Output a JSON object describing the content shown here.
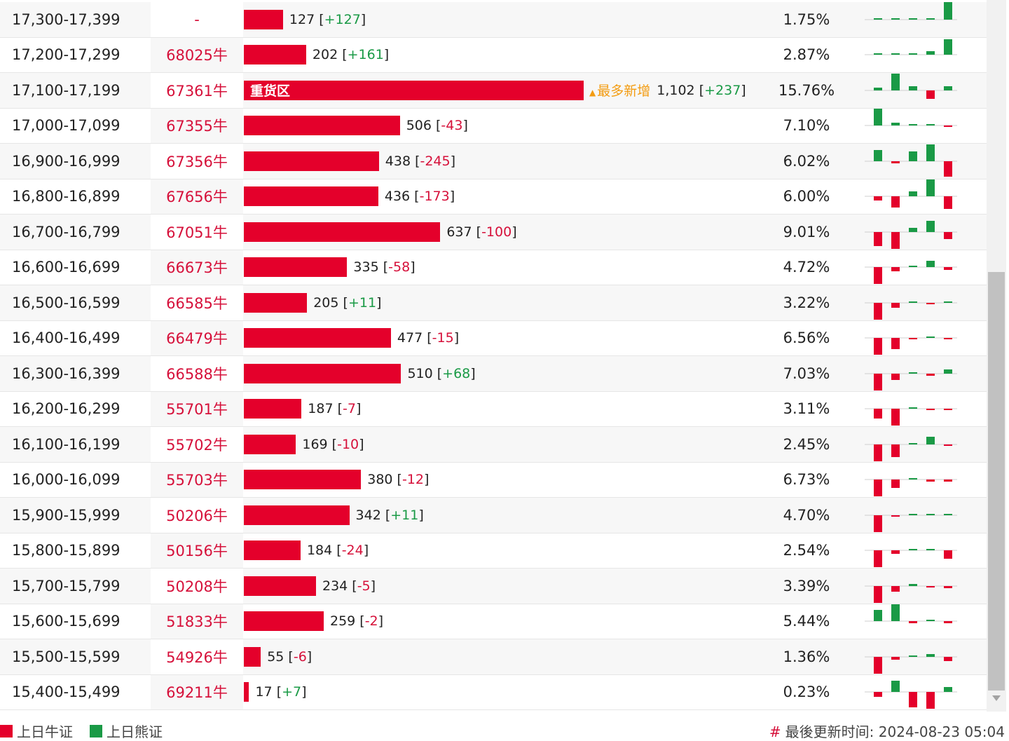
{
  "colors": {
    "bull": "#e4002b",
    "bear": "#1a9a46",
    "warn": "#f39c12"
  },
  "rows": [
    {
      "range": "17,300-17,399",
      "code": "-",
      "amount": "127",
      "change": "+127",
      "pct": "1.75%",
      "bar_value": 127,
      "spark": [
        0,
        0,
        0,
        0,
        25
      ]
    },
    {
      "range": "17,200-17,299",
      "code": "68025牛",
      "amount": "202",
      "change": "+161",
      "pct": "2.87%",
      "bar_value": 202,
      "spark": [
        0,
        0,
        0,
        5,
        22
      ]
    },
    {
      "range": "17,100-17,199",
      "code": "67361牛",
      "amount": "1,102",
      "change": "+237",
      "pct": "15.76%",
      "bar_value": 1102,
      "bar_label": "重货区",
      "most_label": "最多新增",
      "spark": [
        4,
        24,
        6,
        -12,
        6
      ]
    },
    {
      "range": "17,000-17,099",
      "code": "67355牛",
      "amount": "506",
      "change": "-43",
      "pct": "7.10%",
      "bar_value": 506,
      "spark": [
        24,
        4,
        2,
        2,
        -2
      ]
    },
    {
      "range": "16,900-16,999",
      "code": "67356牛",
      "amount": "438",
      "change": "-245",
      "pct": "6.02%",
      "bar_value": 438,
      "spark": [
        16,
        -3,
        14,
        24,
        -22
      ]
    },
    {
      "range": "16,800-16,899",
      "code": "67656牛",
      "amount": "436",
      "change": "-173",
      "pct": "6.00%",
      "bar_value": 436,
      "spark": [
        -6,
        -16,
        7,
        24,
        -18
      ]
    },
    {
      "range": "16,700-16,799",
      "code": "67051牛",
      "amount": "637",
      "change": "-100",
      "pct": "9.01%",
      "bar_value": 637,
      "spark": [
        -20,
        -24,
        6,
        16,
        -10
      ]
    },
    {
      "range": "16,600-16,699",
      "code": "66673牛",
      "amount": "335",
      "change": "-58",
      "pct": "4.72%",
      "bar_value": 335,
      "spark": [
        -24,
        -6,
        2,
        9,
        -4
      ]
    },
    {
      "range": "16,500-16,599",
      "code": "66585牛",
      "amount": "205",
      "change": "+11",
      "pct": "3.22%",
      "bar_value": 205,
      "spark": [
        -24,
        -7,
        2,
        -2,
        2
      ]
    },
    {
      "range": "16,400-16,499",
      "code": "66479牛",
      "amount": "477",
      "change": "-15",
      "pct": "6.56%",
      "bar_value": 477,
      "spark": [
        -24,
        -16,
        -2,
        0,
        -2
      ]
    },
    {
      "range": "16,300-16,399",
      "code": "66588牛",
      "amount": "510",
      "change": "+68",
      "pct": "7.03%",
      "bar_value": 510,
      "spark": [
        -24,
        -9,
        2,
        -3,
        6
      ]
    },
    {
      "range": "16,200-16,299",
      "code": "55701牛",
      "amount": "187",
      "change": "-7",
      "pct": "3.11%",
      "bar_value": 187,
      "spark": [
        -14,
        -24,
        0,
        -2,
        -2
      ]
    },
    {
      "range": "16,100-16,199",
      "code": "55702牛",
      "amount": "169",
      "change": "-10",
      "pct": "2.45%",
      "bar_value": 169,
      "spark": [
        -24,
        -18,
        2,
        11,
        -2
      ]
    },
    {
      "range": "16,000-16,099",
      "code": "55703牛",
      "amount": "380",
      "change": "-12",
      "pct": "6.73%",
      "bar_value": 380,
      "spark": [
        -24,
        -12,
        2,
        -3,
        -3
      ]
    },
    {
      "range": "15,900-15,999",
      "code": "50206牛",
      "amount": "342",
      "change": "+11",
      "pct": "4.70%",
      "bar_value": 342,
      "spark": [
        -24,
        -2,
        0,
        2,
        2
      ]
    },
    {
      "range": "15,800-15,899",
      "code": "50156牛",
      "amount": "184",
      "change": "-24",
      "pct": "2.54%",
      "bar_value": 184,
      "spark": [
        -24,
        -5,
        2,
        2,
        -12
      ]
    },
    {
      "range": "15,700-15,799",
      "code": "50208牛",
      "amount": "234",
      "change": "-5",
      "pct": "3.39%",
      "bar_value": 234,
      "spark": [
        -24,
        -8,
        3,
        -2,
        -3
      ]
    },
    {
      "range": "15,600-15,699",
      "code": "51833牛",
      "amount": "259",
      "change": "-2",
      "pct": "5.44%",
      "bar_value": 259,
      "spark": [
        16,
        24,
        -3,
        0,
        -3
      ]
    },
    {
      "range": "15,500-15,599",
      "code": "54926牛",
      "amount": "55",
      "change": "-6",
      "pct": "1.36%",
      "bar_value": 55,
      "spark": [
        -24,
        -4,
        0,
        4,
        -6
      ]
    },
    {
      "range": "15,400-15,499",
      "code": "69211牛",
      "amount": "17",
      "change": "+7",
      "pct": "0.23%",
      "bar_value": 17,
      "spark": [
        -7,
        16,
        -22,
        -24,
        7
      ]
    }
  ],
  "legend": {
    "bull_label": "上日牛证",
    "bear_label": "上日熊证"
  },
  "footer": {
    "hash": "#",
    "updated_label": "最後更新时间: 2024-08-23 05:04"
  }
}
